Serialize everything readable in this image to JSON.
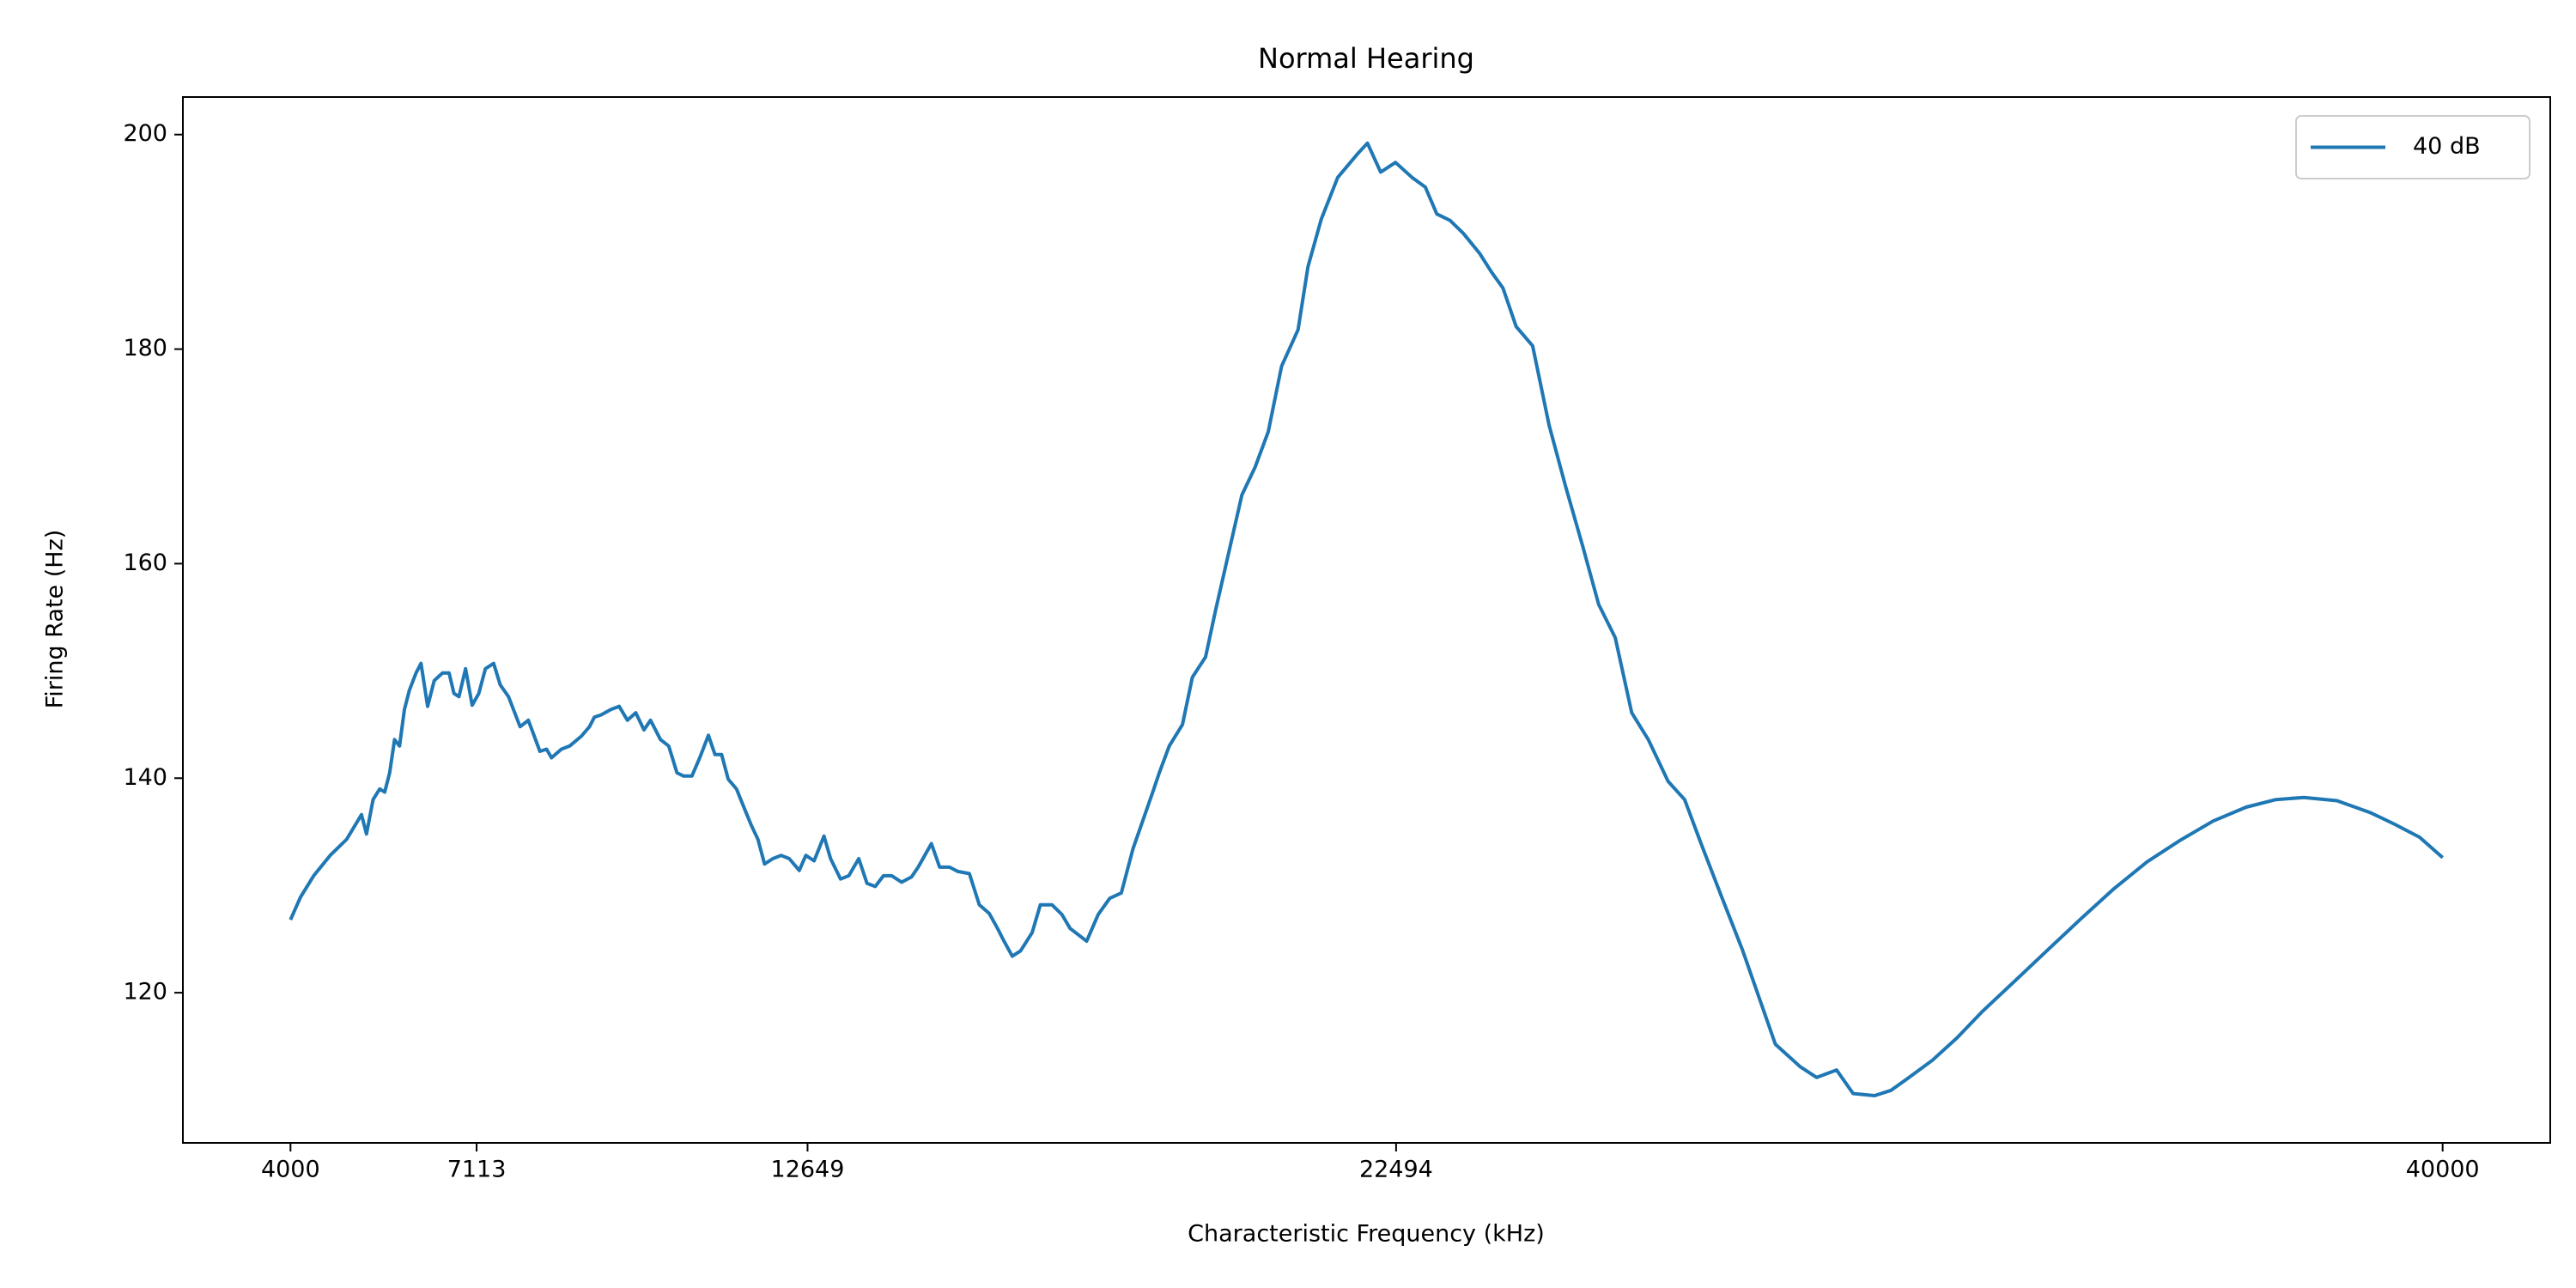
{
  "chart_data": {
    "type": "line",
    "title": "Normal Hearing",
    "xlabel": "Characteristic Frequency (kHz)",
    "ylabel": "Firing Rate (Hz)",
    "xlim": [
      2200,
      41800
    ],
    "ylim": [
      106,
      203.5
    ],
    "xticks": [
      4000,
      7113,
      12649,
      22494,
      40000
    ],
    "yticks": [
      120,
      140,
      160,
      180,
      200
    ],
    "legend_loc": "upper right",
    "grid": false,
    "series": [
      {
        "name": "40 dB",
        "color": "#1f77b4",
        "x": [
          4000,
          4166,
          4387,
          4663,
          4939,
          5188,
          5271,
          5382,
          5492,
          5575,
          5658,
          5741,
          5824,
          5906,
          5989,
          6100,
          6183,
          6293,
          6404,
          6542,
          6652,
          6735,
          6818,
          6929,
          7039,
          7150,
          7260,
          7398,
          7509,
          7647,
          7841,
          7979,
          8172,
          8283,
          8366,
          8531,
          8669,
          8863,
          9001,
          9084,
          9194,
          9360,
          9498,
          9636,
          9775,
          9913,
          10023,
          10189,
          10327,
          10465,
          10576,
          10714,
          10852,
          10990,
          11101,
          11211,
          11322,
          11460,
          11598,
          11709,
          11819,
          11930,
          12068,
          12206,
          12344,
          12510,
          12620,
          12759,
          12924,
          13035,
          13201,
          13339,
          13505,
          13643,
          13781,
          13919,
          14057,
          14223,
          14389,
          14499,
          14720,
          14858,
          15024,
          15162,
          15356,
          15522,
          15687,
          15826,
          15936,
          16074,
          16212,
          16406,
          16544,
          16737,
          16903,
          17041,
          17318,
          17511,
          17704,
          17898,
          18091,
          18229,
          18423,
          18533,
          18699,
          18920,
          19086,
          19307,
          19472,
          19693,
          19914,
          20135,
          20356,
          20578,
          20854,
          21020,
          21241,
          21517,
          21849,
          22015,
          22236,
          22484,
          22761,
          22982,
          23175,
          23396,
          23617,
          23894,
          24087,
          24281,
          24502,
          24778,
          25054,
          25330,
          25607,
          25883,
          26159,
          26436,
          26712,
          27044,
          27320,
          27596,
          27928,
          28287,
          28839,
          29254,
          29530,
          29862,
          30138,
          30497,
          30773,
          31050,
          31464,
          31878,
          32292,
          32845,
          33398,
          33950,
          34503,
          35056,
          35608,
          36161,
          36714,
          37211,
          37680,
          38233,
          38785,
          39200,
          39614,
          40000
        ],
        "values": [
          126.8,
          128.9,
          130.9,
          132.8,
          134.3,
          136.6,
          134.8,
          138.0,
          139.0,
          138.7,
          140.5,
          143.6,
          143.0,
          146.4,
          148.2,
          149.8,
          150.7,
          146.7,
          149.1,
          149.8,
          149.8,
          147.9,
          147.6,
          150.2,
          146.8,
          147.9,
          150.2,
          150.7,
          148.7,
          147.6,
          144.8,
          145.4,
          142.5,
          142.7,
          141.9,
          142.7,
          143.0,
          143.9,
          144.8,
          145.7,
          145.9,
          146.4,
          146.7,
          145.4,
          146.1,
          144.5,
          145.4,
          143.6,
          143.0,
          140.5,
          140.2,
          140.2,
          142.0,
          144.0,
          142.2,
          142.2,
          139.9,
          139.0,
          137.1,
          135.6,
          134.3,
          132.0,
          132.5,
          132.8,
          132.5,
          131.4,
          132.8,
          132.3,
          134.6,
          132.5,
          130.6,
          130.9,
          132.5,
          130.2,
          129.9,
          130.9,
          130.9,
          130.3,
          130.8,
          131.7,
          133.9,
          131.7,
          131.7,
          131.3,
          131.1,
          128.2,
          127.4,
          126.0,
          124.8,
          123.4,
          123.9,
          125.6,
          128.2,
          128.2,
          127.3,
          126.0,
          124.8,
          127.3,
          128.8,
          129.3,
          133.4,
          135.6,
          138.7,
          140.5,
          143.0,
          145.0,
          149.4,
          151.3,
          155.6,
          161.0,
          166.4,
          169.0,
          172.3,
          178.4,
          181.8,
          187.7,
          192.1,
          196.0,
          198.2,
          199.2,
          196.5,
          197.4,
          196.0,
          195.1,
          192.6,
          192.0,
          190.8,
          188.9,
          187.2,
          185.7,
          182.1,
          180.3,
          172.9,
          167.2,
          161.8,
          156.2,
          153.1,
          146.1,
          143.6,
          139.7,
          138.0,
          133.9,
          129.1,
          124.0,
          115.2,
          113.1,
          112.1,
          112.8,
          110.6,
          110.4,
          110.9,
          112.0,
          113.7,
          115.8,
          118.2,
          121.1,
          124.0,
          126.9,
          129.7,
          132.2,
          134.2,
          136.0,
          137.3,
          138.0,
          138.2,
          137.9,
          136.8,
          135.7,
          134.5,
          132.6
        ]
      }
    ]
  }
}
